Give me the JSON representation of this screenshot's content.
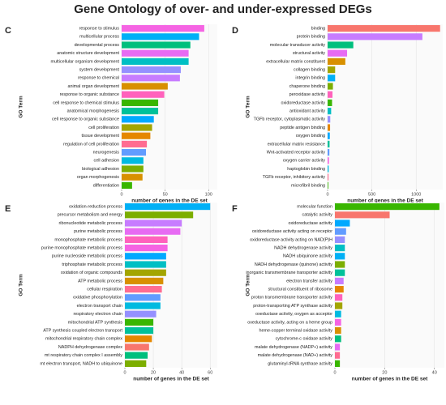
{
  "title": "Gene Ontology of over- and under-expressed DEGs",
  "chart_data": [
    {
      "type": "bar",
      "label": "C",
      "xlabel": "number of genes in the DE set",
      "ylabel": "GO Term",
      "categories": [
        "response to stimulus",
        "multicellular process",
        "developmental process",
        "anatomic structure development",
        "multicellular organism development",
        "system development",
        "response to chemical",
        "animal organ development",
        "response to organic substance",
        "cell response to chemical stimulus",
        "anatomical morphogenesis",
        "cell response to organic substance",
        "cell proliferation",
        "tissue development",
        "regulation of cell proliferation",
        "neurogenesis",
        "cell adhesion",
        "biological adhesion",
        "organ morphogenesis",
        "differentiation"
      ],
      "values": [
        95,
        89,
        79,
        77,
        77,
        68,
        67,
        53,
        49,
        42,
        42,
        37,
        35,
        33,
        29,
        28,
        25,
        25,
        24,
        12
      ],
      "colors": [
        "#f564e3",
        "#00b0f6",
        "#00bf7d",
        "#e76bf3",
        "#00bfc4",
        "#9590ff",
        "#c77cff",
        "#d89000",
        "#ff62bc",
        "#39b600",
        "#00c19a",
        "#00a9ff",
        "#a3a500",
        "#e58700",
        "#ff6c91",
        "#619cff",
        "#00bae0",
        "#7cae00",
        "#d89000",
        "#39b600"
      ],
      "xlim": [
        0,
        110
      ],
      "xticks": [
        0,
        50,
        100
      ],
      "grid": true
    },
    {
      "type": "bar",
      "label": "D",
      "xlabel": "number of genes in the DE set",
      "ylabel": "GO Term",
      "categories": [
        "binding",
        "protein binding",
        "molecular transducer activity",
        "structural activity",
        "extracellular matrix constituent",
        "collagen binding",
        "integrin binding",
        "chaperone binding",
        "peroxidase activity",
        "oxidoreductase activity",
        "antioxidant activity",
        "TGFb receptor, cytoplasmatic activity",
        "peptide antigen binding",
        "oxygen binding",
        "extracellular matrix resistance",
        "Wnt-activated receptor activity",
        "oxygen carrier activity",
        "haptoglobin binding",
        "TGFb receptor, inhibitory activity",
        "microfibril binding"
      ],
      "values": [
        1270,
        1070,
        290,
        220,
        200,
        85,
        85,
        60,
        55,
        50,
        40,
        30,
        28,
        25,
        22,
        20,
        15,
        12,
        10,
        8
      ],
      "colors": [
        "#f8766d",
        "#c77cff",
        "#00bf7d",
        "#e76bf3",
        "#d89000",
        "#a3a500",
        "#00b0f6",
        "#7cae00",
        "#ff62bc",
        "#39b600",
        "#00bfc4",
        "#9590ff",
        "#e58700",
        "#00a9ff",
        "#00c19a",
        "#619cff",
        "#f564e3",
        "#00bae0",
        "#ff6c91",
        "#39b600"
      ],
      "xlim": [
        0,
        1300
      ],
      "xticks": [
        0,
        500,
        1000
      ],
      "grid": true
    },
    {
      "type": "bar",
      "label": "E",
      "xlabel": "number of genes in the DE set",
      "ylabel": "GO Term",
      "categories": [
        "oxidation-reduction process",
        "precursor metabolism and energy",
        "ribonucleotide metabolic process",
        "purine metabolic process",
        "monophosphate metabolic process",
        "purine monophosphate metabolic process",
        "purine nucleoside metabolic process",
        "triphosphate metabolic process",
        "oxidation of organic compounds",
        "ATP metabolic process",
        "cellular respiration",
        "oxidative phosphorylation",
        "electron transport chain",
        "respiratory electron chain",
        "mitochondrial ATP synthesis",
        "ATP synthesis coupled electron transport",
        "mitochondrial respiratory chain complex",
        "NADPH dehydrogenase complex",
        "mt respiratory chain complex I assembly",
        "mt electron transport, NADH to ubiquinone"
      ],
      "values": [
        60,
        48,
        40,
        39,
        30,
        30,
        29,
        29,
        29,
        27,
        26,
        25,
        25,
        22,
        20,
        20,
        19,
        17,
        16,
        15
      ],
      "colors": [
        "#00b0f6",
        "#7cae00",
        "#c77cff",
        "#e76bf3",
        "#ff62bc",
        "#f564e3",
        "#00a9ff",
        "#00bfc4",
        "#a3a500",
        "#d89000",
        "#ff6c91",
        "#619cff",
        "#00bae0",
        "#9590ff",
        "#39b600",
        "#00c19a",
        "#e58700",
        "#f8766d",
        "#00bf7d",
        "#7cae00"
      ],
      "xlim": [
        0,
        65
      ],
      "xticks": [
        0,
        20,
        40,
        60
      ],
      "grid": true
    },
    {
      "type": "bar",
      "label": "F",
      "xlabel": "number of genes in the DE set",
      "ylabel": "GO Term",
      "categories": [
        "molecular function",
        "catalytic activity",
        "oxidoreductase activity",
        "oxidoreductase activity acting on receptor",
        "oxidoreductase activity acting on NAD(P)H",
        "NADH dehydrogenase activity",
        "NADH ubiquinone activity",
        "NADH dehydrogenase (quinone) activity",
        "inorganic transmembrane transporter activity",
        "electron transfer activity",
        "structural constituent of ribosome",
        "proton transmembrane transporter activity",
        "proton-transporting ATP synthase activity",
        "oxeductase activity, oxygen as acceptor",
        "oxeductase activity, acting on a heme group",
        "heme-copper terminal oxidase activity",
        "cytochrome-c oxidase activity",
        "malate dehydrogenase (NADP+) activity",
        "malate dehydrogenase (NAD+) activity",
        "glutaminyl-tRNA synthase activity"
      ],
      "values": [
        42,
        22,
        6,
        4.5,
        4,
        4,
        4,
        4,
        4,
        3.5,
        3.5,
        3,
        3,
        2.5,
        2.5,
        2.5,
        2.5,
        2,
        2,
        2
      ],
      "colors": [
        "#39b600",
        "#f8766d",
        "#00a9ff",
        "#619cff",
        "#9590ff",
        "#00bfc4",
        "#00b0f6",
        "#7cae00",
        "#00c19a",
        "#c77cff",
        "#e58700",
        "#ff62bc",
        "#a3a500",
        "#00bae0",
        "#f564e3",
        "#d89000",
        "#00bf7d",
        "#e76bf3",
        "#ff6c91",
        "#39b600"
      ],
      "xlim": [
        0,
        44
      ],
      "xticks": [
        0,
        20,
        40
      ],
      "grid": true
    }
  ]
}
